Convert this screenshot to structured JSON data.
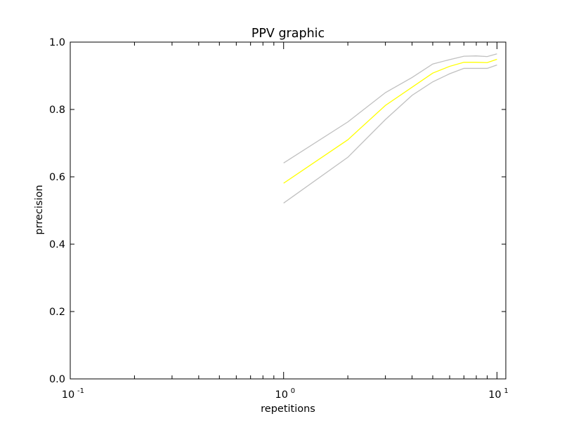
{
  "chart_data": {
    "type": "line",
    "title": "PPV graphic",
    "xlabel": "repetitions",
    "ylabel": "prrecision",
    "x_scale": "log",
    "xlim": [
      0.1,
      11
    ],
    "ylim": [
      0.0,
      1.0
    ],
    "grid": false,
    "x_major_ticks": [
      {
        "value": 0.1,
        "base": "10",
        "exp": "-1"
      },
      {
        "value": 1,
        "base": "10",
        "exp": "0"
      },
      {
        "value": 10,
        "base": "10",
        "exp": "1"
      }
    ],
    "y_ticks": [
      0.0,
      0.2,
      0.4,
      0.6,
      0.8,
      1.0
    ],
    "y_tick_labels": [
      "0.0",
      "0.2",
      "0.4",
      "0.6",
      "0.8",
      "1.0"
    ],
    "series": [
      {
        "color": "#c0c0c0",
        "x": [
          1,
          2,
          3,
          4,
          5,
          6,
          7,
          8,
          9,
          10
        ],
        "y": [
          0.641,
          0.763,
          0.85,
          0.895,
          0.935,
          0.948,
          0.958,
          0.959,
          0.957,
          0.965
        ]
      },
      {
        "color": "#ffff00",
        "x": [
          1,
          2,
          3,
          4,
          5,
          6,
          7,
          8,
          9,
          10
        ],
        "y": [
          0.581,
          0.71,
          0.812,
          0.866,
          0.908,
          0.928,
          0.94,
          0.94,
          0.939,
          0.949
        ]
      },
      {
        "color": "#c0c0c0",
        "x": [
          1,
          2,
          3,
          4,
          5,
          6,
          7,
          8,
          9,
          10
        ],
        "y": [
          0.522,
          0.658,
          0.77,
          0.842,
          0.882,
          0.906,
          0.922,
          0.922,
          0.922,
          0.932
        ]
      }
    ]
  }
}
